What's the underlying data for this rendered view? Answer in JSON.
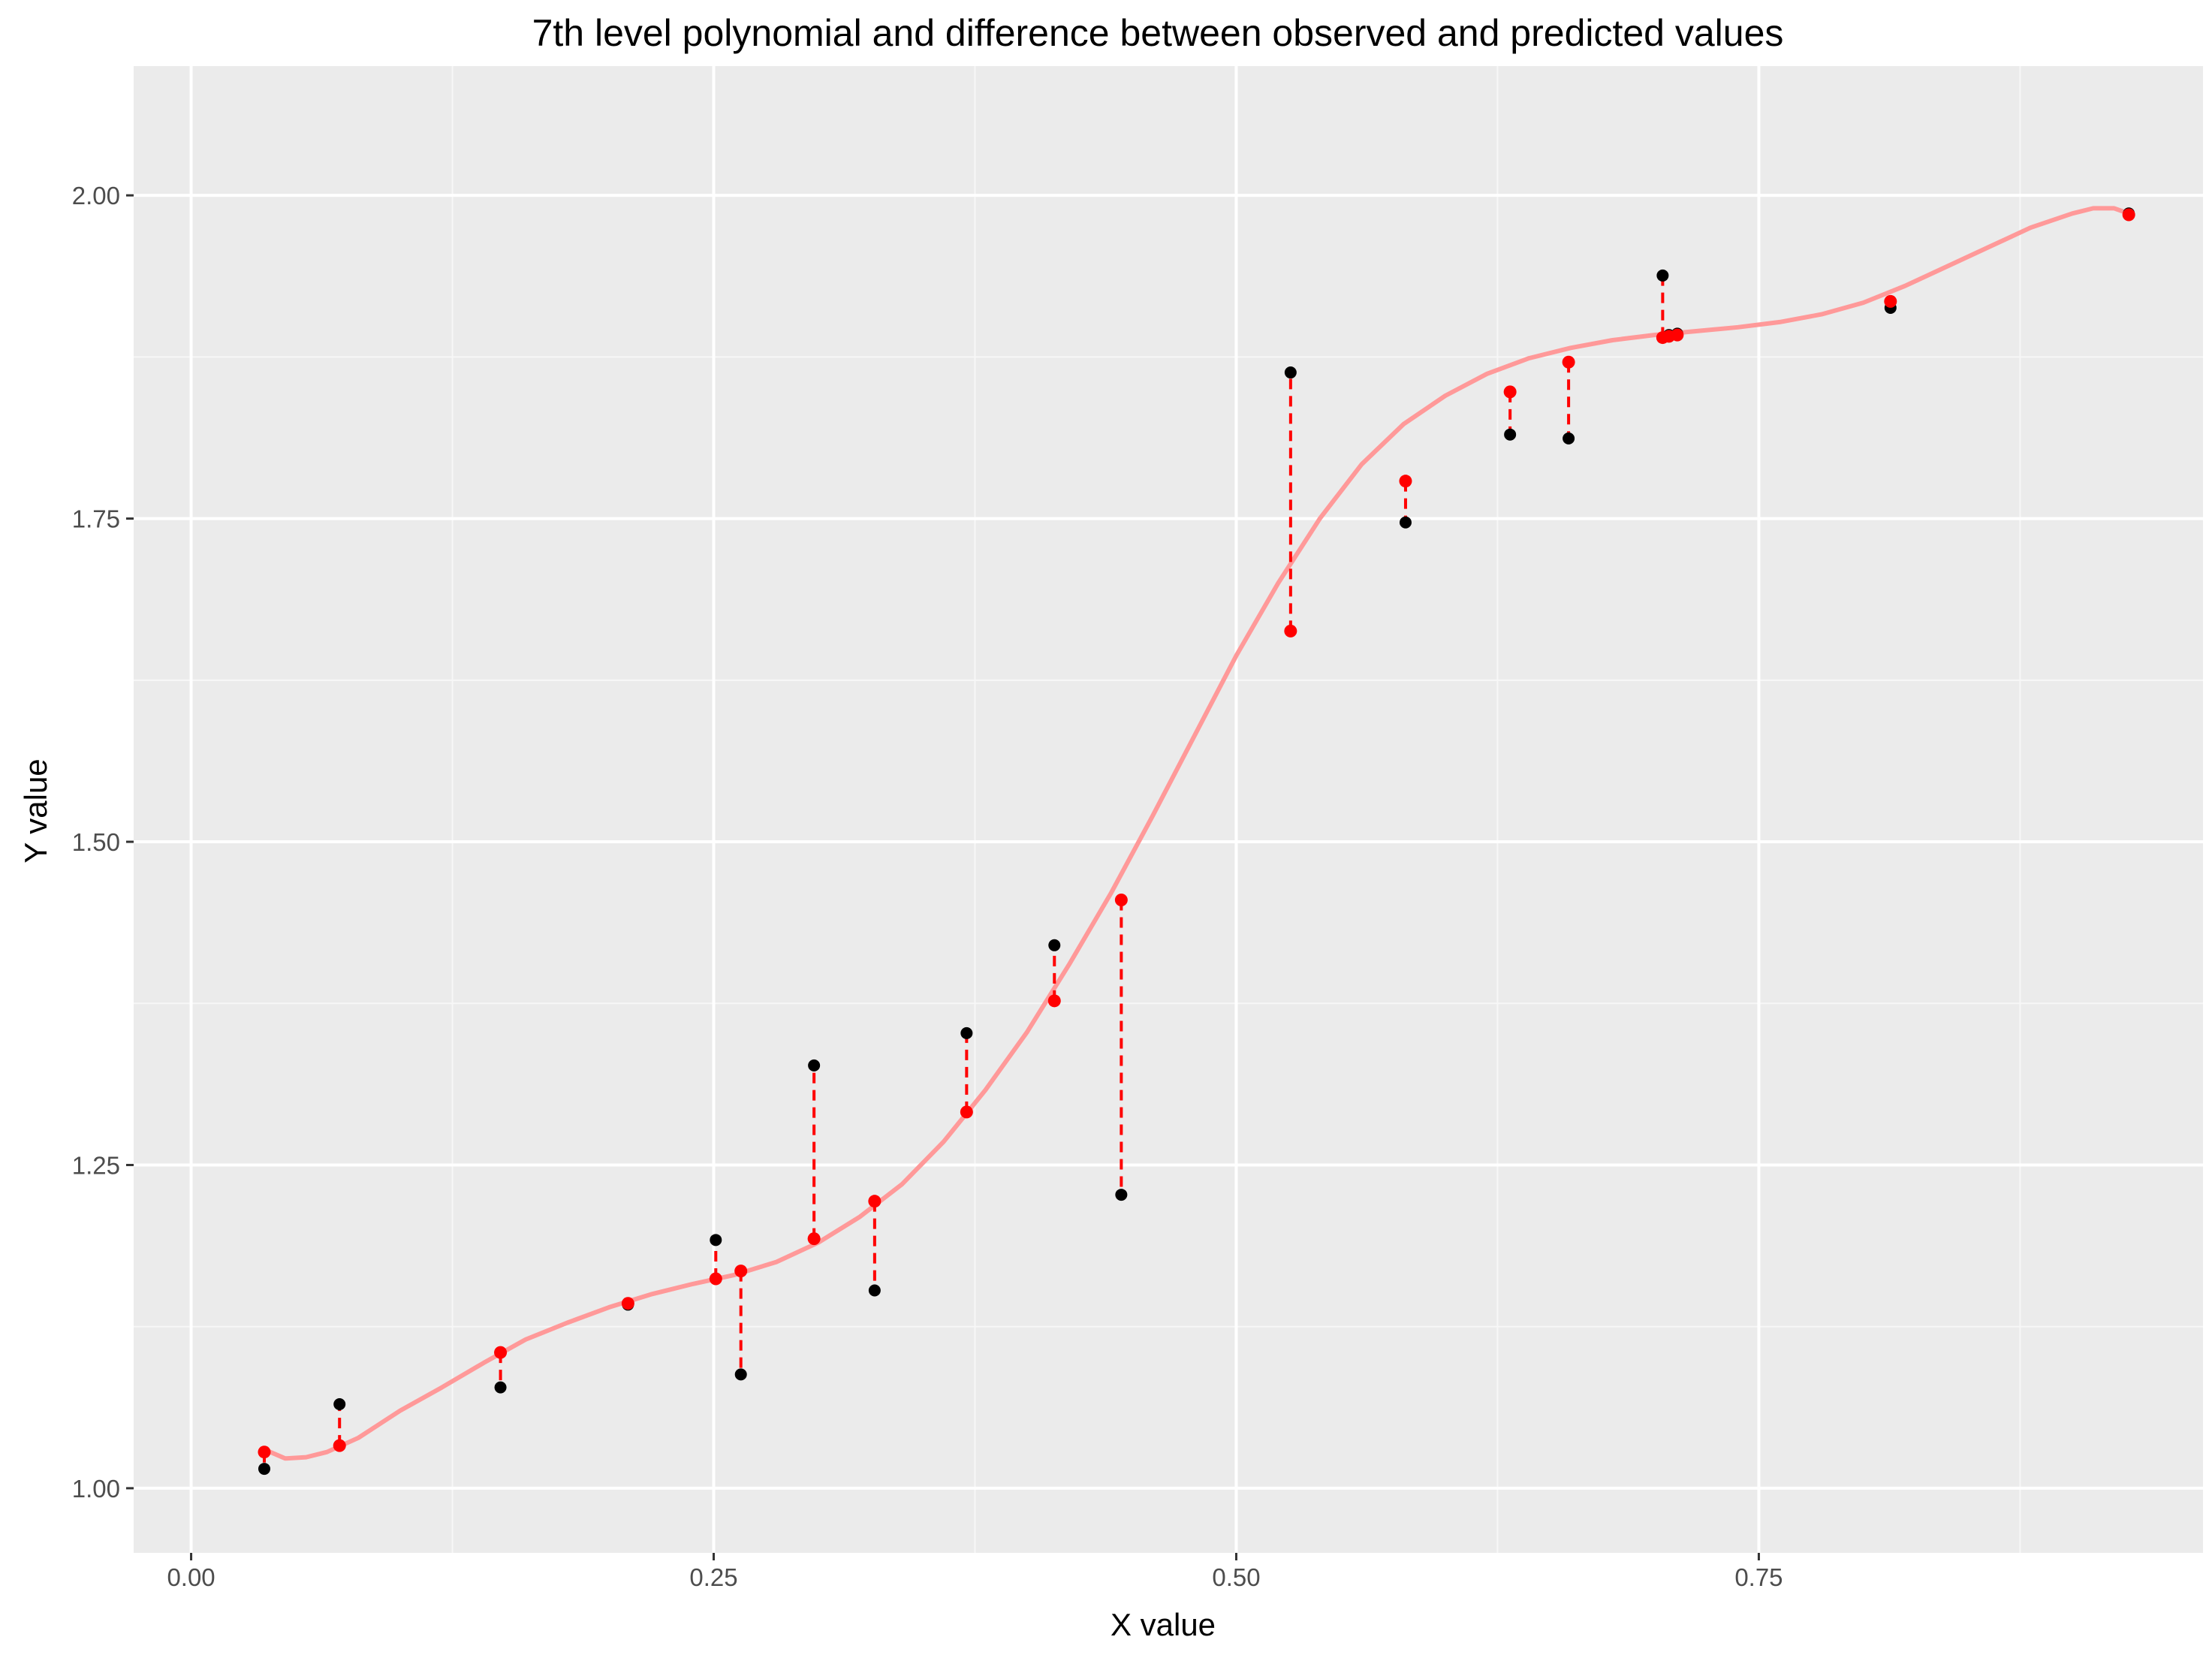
{
  "chart_data": {
    "type": "scatter",
    "title": "7th level polynomial and difference between observed and predicted values",
    "xlabel": "X value",
    "ylabel": "Y value",
    "xlim": [
      -0.0275,
      0.9625
    ],
    "ylim": [
      0.95,
      2.1
    ],
    "x_ticks": [
      0.0,
      0.25,
      0.5,
      0.75
    ],
    "x_tick_labels": [
      "0.00",
      "0.25",
      "0.50",
      "0.75"
    ],
    "y_ticks": [
      1.0,
      1.25,
      1.5,
      1.75,
      2.0
    ],
    "y_tick_labels": [
      "1.00",
      "1.25",
      "1.50",
      "1.75",
      "2.00"
    ],
    "grid": true,
    "legend": "none",
    "colors": {
      "panel_background": "#ebebeb",
      "grid_major": "#ffffff",
      "grid_minor": "#f7f7f7",
      "observed_point": "#000000",
      "predicted_point": "#ff0000",
      "residual_segment": "#ff0000",
      "fitted_curve": "#ff9999",
      "tick_label": "#4d4d4d"
    },
    "points": [
      {
        "x": 0.035,
        "observed": 1.015,
        "predicted": 1.028
      },
      {
        "x": 0.071,
        "observed": 1.065,
        "predicted": 1.033
      },
      {
        "x": 0.148,
        "observed": 1.078,
        "predicted": 1.105
      },
      {
        "x": 0.209,
        "observed": 1.142,
        "predicted": 1.143
      },
      {
        "x": 0.251,
        "observed": 1.192,
        "predicted": 1.162
      },
      {
        "x": 0.263,
        "observed": 1.088,
        "predicted": 1.168
      },
      {
        "x": 0.298,
        "observed": 1.327,
        "predicted": 1.193
      },
      {
        "x": 0.327,
        "observed": 1.153,
        "predicted": 1.222
      },
      {
        "x": 0.371,
        "observed": 1.352,
        "predicted": 1.291
      },
      {
        "x": 0.413,
        "observed": 1.42,
        "predicted": 1.377
      },
      {
        "x": 0.445,
        "observed": 1.227,
        "predicted": 1.455
      },
      {
        "x": 0.526,
        "observed": 1.863,
        "predicted": 1.663
      },
      {
        "x": 0.581,
        "observed": 1.747,
        "predicted": 1.779
      },
      {
        "x": 0.631,
        "observed": 1.815,
        "predicted": 1.848
      },
      {
        "x": 0.659,
        "observed": 1.812,
        "predicted": 1.871
      },
      {
        "x": 0.704,
        "observed": 1.938,
        "predicted": 1.89
      },
      {
        "x": 0.707,
        "observed": 1.892,
        "predicted": 1.891
      },
      {
        "x": 0.711,
        "observed": 1.893,
        "predicted": 1.892
      },
      {
        "x": 0.813,
        "observed": 1.913,
        "predicted": 1.918
      },
      {
        "x": 0.927,
        "observed": 1.986,
        "predicted": 1.985
      }
    ],
    "curve": {
      "x": [
        0.035,
        0.045,
        0.055,
        0.065,
        0.08,
        0.1,
        0.12,
        0.14,
        0.16,
        0.18,
        0.2,
        0.22,
        0.24,
        0.26,
        0.28,
        0.3,
        0.32,
        0.34,
        0.36,
        0.38,
        0.4,
        0.42,
        0.44,
        0.46,
        0.48,
        0.5,
        0.52,
        0.54,
        0.56,
        0.58,
        0.6,
        0.62,
        0.64,
        0.66,
        0.68,
        0.7,
        0.72,
        0.74,
        0.76,
        0.78,
        0.8,
        0.82,
        0.84,
        0.86,
        0.88,
        0.9,
        0.91,
        0.92,
        0.927
      ],
      "y": [
        1.03,
        1.023,
        1.024,
        1.028,
        1.039,
        1.06,
        1.078,
        1.097,
        1.115,
        1.128,
        1.14,
        1.15,
        1.158,
        1.165,
        1.175,
        1.19,
        1.21,
        1.235,
        1.268,
        1.308,
        1.353,
        1.405,
        1.46,
        1.52,
        1.582,
        1.644,
        1.7,
        1.75,
        1.792,
        1.823,
        1.845,
        1.862,
        1.874,
        1.882,
        1.888,
        1.892,
        1.895,
        1.898,
        1.902,
        1.908,
        1.917,
        1.93,
        1.945,
        1.96,
        1.975,
        1.986,
        1.99,
        1.99,
        1.986
      ]
    }
  }
}
